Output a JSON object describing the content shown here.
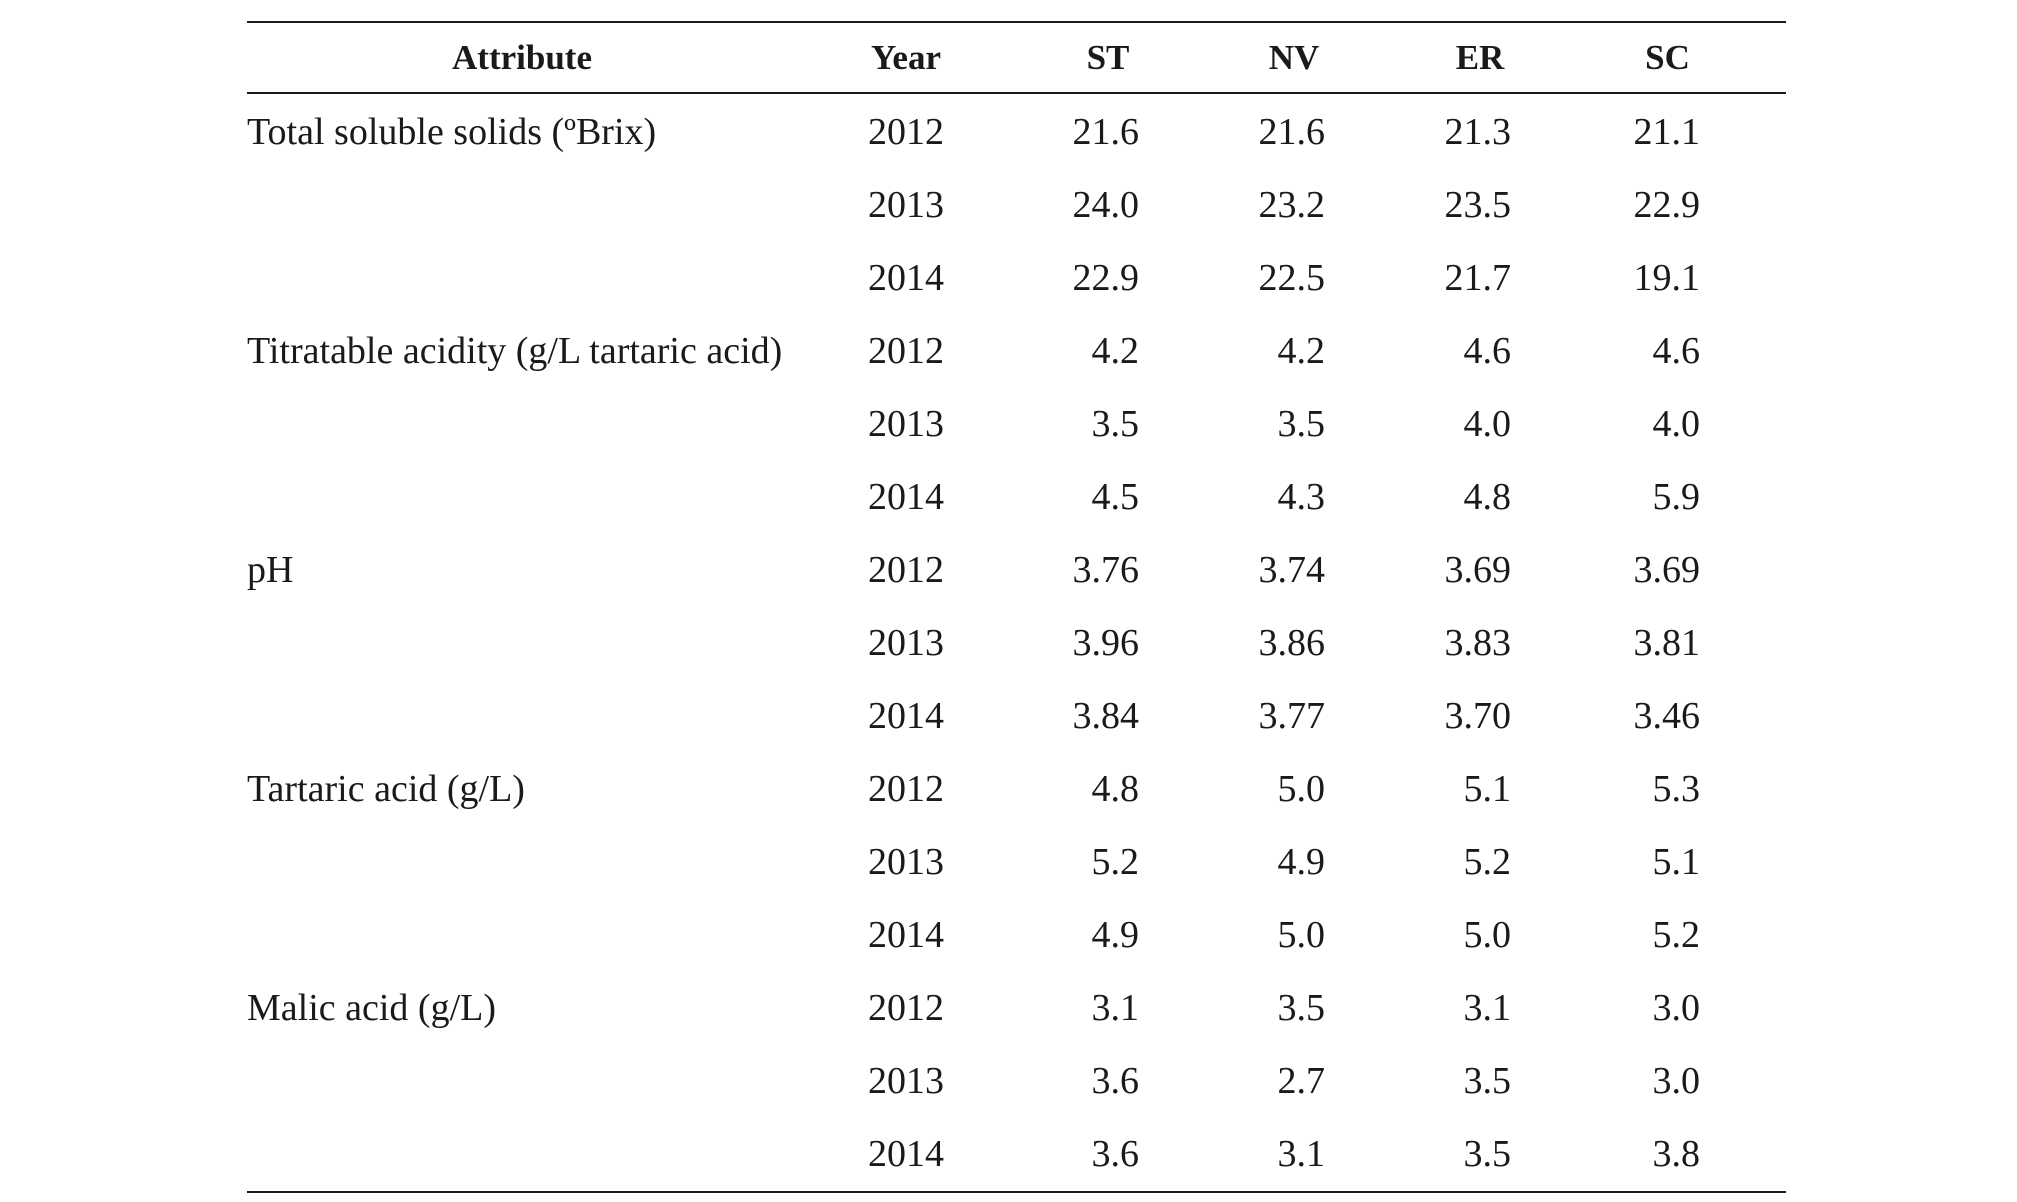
{
  "table": {
    "headers": {
      "attribute": "Attribute",
      "year": "Year",
      "st": "ST",
      "nv": "NV",
      "er": "ER",
      "sc": "SC"
    },
    "rows": [
      {
        "attribute": "Total soluble solids (ºBrix)",
        "year": "2012",
        "st": "21.6",
        "nv": "21.6",
        "er": "21.3",
        "sc": "21.1"
      },
      {
        "attribute": "",
        "year": "2013",
        "st": "24.0",
        "nv": "23.2",
        "er": "23.5",
        "sc": "22.9"
      },
      {
        "attribute": "",
        "year": "2014",
        "st": "22.9",
        "nv": "22.5",
        "er": "21.7",
        "sc": "19.1"
      },
      {
        "attribute": "Titratable acidity (g/L tartaric acid)",
        "year": "2012",
        "st": "4.2",
        "nv": "4.2",
        "er": "4.6",
        "sc": "4.6"
      },
      {
        "attribute": "",
        "year": "2013",
        "st": "3.5",
        "nv": "3.5",
        "er": "4.0",
        "sc": "4.0"
      },
      {
        "attribute": "",
        "year": "2014",
        "st": "4.5",
        "nv": "4.3",
        "er": "4.8",
        "sc": "5.9"
      },
      {
        "attribute": "pH",
        "year": "2012",
        "st": "3.76",
        "nv": "3.74",
        "er": "3.69",
        "sc": "3.69"
      },
      {
        "attribute": "",
        "year": "2013",
        "st": "3.96",
        "nv": "3.86",
        "er": "3.83",
        "sc": "3.81"
      },
      {
        "attribute": "",
        "year": "2014",
        "st": "3.84",
        "nv": "3.77",
        "er": "3.70",
        "sc": "3.46"
      },
      {
        "attribute": "Tartaric acid (g/L)",
        "year": "2012",
        "st": "4.8",
        "nv": "5.0",
        "er": "5.1",
        "sc": "5.3"
      },
      {
        "attribute": "",
        "year": "2013",
        "st": "5.2",
        "nv": "4.9",
        "er": "5.2",
        "sc": "5.1"
      },
      {
        "attribute": "",
        "year": "2014",
        "st": "4.9",
        "nv": "5.0",
        "er": "5.0",
        "sc": "5.2"
      },
      {
        "attribute": "Malic acid (g/L)",
        "year": "2012",
        "st": "3.1",
        "nv": "3.5",
        "er": "3.1",
        "sc": "3.0"
      },
      {
        "attribute": "",
        "year": "2013",
        "st": "3.6",
        "nv": "2.7",
        "er": "3.5",
        "sc": "3.0"
      },
      {
        "attribute": "",
        "year": "2014",
        "st": "3.6",
        "nv": "3.1",
        "er": "3.5",
        "sc": "3.8"
      }
    ]
  }
}
